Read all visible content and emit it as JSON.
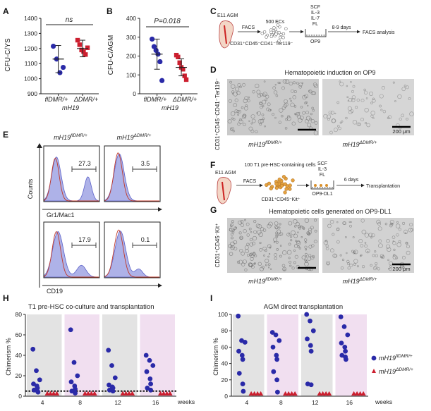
{
  "panels": {
    "A": {
      "label": "A",
      "ylabel": "CFU-C/YS",
      "sig": "ns",
      "xticks": [
        "flDMR/+",
        "ΔDMR/+"
      ],
      "group": "mH19"
    },
    "B": {
      "label": "B",
      "ylabel": "CFU-C/AGM",
      "sig": "P=0.018",
      "xticks": [
        "flDMR/+",
        "ΔDMR/+"
      ],
      "group": "mH19"
    },
    "C": {
      "label": "C",
      "agm": "E11 AGM",
      "facs": "FACS",
      "cells": "500 ECs",
      "factors": [
        "SCF",
        "IL-3",
        "IL-7",
        "FL"
      ],
      "days": "8-9 days",
      "analysis": "FACS analysis",
      "markers": "CD31⁺CD45⁻CD41⁻Ter119⁻",
      "stroma": "OP9"
    },
    "D": {
      "label": "D",
      "title": "Hematopoietic induction on OP9",
      "ylabel": "CD31⁺CD45⁻CD41⁻Ter119⁻",
      "scale": "200 μm",
      "left": "mH19",
      "left_sup": "flDMR/+",
      "right": "mH19",
      "right_sup": "ΔDMR/+"
    },
    "E": {
      "label": "E",
      "col1": "mH19",
      "col1_sup": "flDMR/+",
      "col2": "mH19",
      "col2_sup": "ΔDMR/+",
      "ylabel": "Counts",
      "row1_marker": "Gr1/Mac1",
      "row2_marker": "CD19",
      "pct": [
        "27.3",
        "3.5",
        "17.9",
        "0.1"
      ]
    },
    "F": {
      "label": "F",
      "agm": "E11 AGM",
      "facs": "FACS",
      "cells": "100 T1 pre-HSC-containing cells",
      "markers": "CD31⁺CD45⁻Kit⁺",
      "factors": [
        "SCF",
        "IL-3",
        "FL"
      ],
      "stroma": "OP9-DL1",
      "days": "6 days",
      "outcome": "Transplantation"
    },
    "G": {
      "label": "G",
      "title": "Hematopoietic cells generated on OP9-DL1",
      "ylabel": "CD31⁺CD45⁻Kit⁺",
      "scale": "200 μm",
      "left": "mH19",
      "left_sup": "flDMR/+",
      "right": "mH19",
      "right_sup": "ΔDMR/+"
    },
    "H": {
      "label": "H",
      "title": "T1  pre-HSC co-culture and transplantation",
      "ylabel": "Chimerism %",
      "xunit": "weeks"
    },
    "I": {
      "label": "I",
      "title": "AGM direct transplantation",
      "ylabel": "Chimerism %",
      "xunit": "weeks",
      "legend": [
        {
          "text": "mH19",
          "sup": "flDMR/+",
          "color": "#2a2aa8"
        },
        {
          "text": "mH19",
          "sup": "ΔDMR/+",
          "color": "#cc1f2f"
        }
      ]
    }
  },
  "colors": {
    "blue": "#2a2aa8",
    "red": "#cc1f2f",
    "gray_band": "#e3e3e3",
    "pink_band": "#f1dff0",
    "hist_fill": "#aeb2e8"
  },
  "chart_data": [
    {
      "id": "A",
      "type": "scatter",
      "categories": [
        "flDMR/+",
        "ΔDMR/+"
      ],
      "ylabel": "CFU-C/YS",
      "ylim": [
        900,
        1400
      ],
      "yticks": [
        900,
        1000,
        1100,
        1200,
        1300,
        1400
      ],
      "series": [
        {
          "name": "flDMR/+",
          "values": [
            1215,
            1130,
            1040,
            1075
          ],
          "mean": 1130,
          "sd": 90
        },
        {
          "name": "ΔDMR/+",
          "values": [
            1255,
            1225,
            1190,
            1180,
            1160,
            1205
          ],
          "mean": 1200,
          "sd": 55
        }
      ],
      "annotation": "ns"
    },
    {
      "id": "B",
      "type": "scatter",
      "categories": [
        "flDMR/+",
        "ΔDMR/+"
      ],
      "ylabel": "CFU-C/AGM",
      "ylim": [
        0,
        400
      ],
      "yticks": [
        0,
        100,
        200,
        300,
        400
      ],
      "series": [
        {
          "name": "flDMR/+",
          "values": [
            290,
            250,
            230,
            210,
            170,
            70
          ],
          "mean": 210,
          "sd": 80
        },
        {
          "name": "ΔDMR/+",
          "values": [
            205,
            195,
            165,
            140,
            130,
            95,
            75
          ],
          "mean": 140,
          "sd": 45
        }
      ],
      "annotation": "P=0.018"
    },
    {
      "id": "H",
      "type": "scatter",
      "categories": [
        "4",
        "8",
        "12",
        "16"
      ],
      "ylabel": "Chimerism %",
      "ylim": [
        0,
        80
      ],
      "yticks": [
        0,
        20,
        40,
        60,
        80
      ],
      "threshold": 5,
      "series": [
        {
          "name": "flDMR/+",
          "groups": [
            [
              46,
              25,
              16,
              12,
              10,
              8,
              6,
              5,
              4
            ],
            [
              65,
              33,
              20,
              14,
              10,
              7,
              5,
              3
            ],
            [
              45,
              30,
              18,
              11,
              9,
              8,
              6,
              5
            ],
            [
              40,
              35,
              30,
              24,
              17,
              12,
              8,
              6
            ]
          ]
        },
        {
          "name": "ΔDMR/+",
          "groups": [
            [
              0.5,
              0.5,
              0.5,
              0.5
            ],
            [
              0.5,
              0.5,
              0.5,
              0.5
            ],
            [
              0.5,
              0.5,
              0.5,
              0.5
            ],
            [
              0.5,
              0.5,
              0.5,
              0.5
            ]
          ]
        }
      ]
    },
    {
      "id": "I",
      "type": "scatter",
      "categories": [
        "4",
        "8",
        "12",
        "16"
      ],
      "ylabel": "Chimerism %",
      "ylim": [
        0,
        100
      ],
      "yticks": [
        0,
        20,
        40,
        60,
        80,
        100
      ],
      "series": [
        {
          "name": "flDMR/+",
          "groups": [
            [
              98,
              68,
              66,
              55,
              50,
              45,
              28,
              15,
              6
            ],
            [
              78,
              75,
              68,
              60,
              50,
              45,
              30,
              20,
              5
            ],
            [
              100,
              92,
              80,
              70,
              62,
              55,
              15,
              14
            ],
            [
              97,
              85,
              75,
              65,
              60,
              55,
              50,
              48,
              45
            ]
          ]
        },
        {
          "name": "ΔDMR/+",
          "groups": [
            [
              0.5,
              0.5,
              0.5,
              0.5
            ],
            [
              0.5,
              0.5,
              0.5,
              0.5
            ],
            [
              0.5,
              0.5,
              0.5,
              0.5
            ],
            [
              0.5,
              0.5,
              0.5,
              0.5
            ]
          ]
        }
      ]
    }
  ]
}
